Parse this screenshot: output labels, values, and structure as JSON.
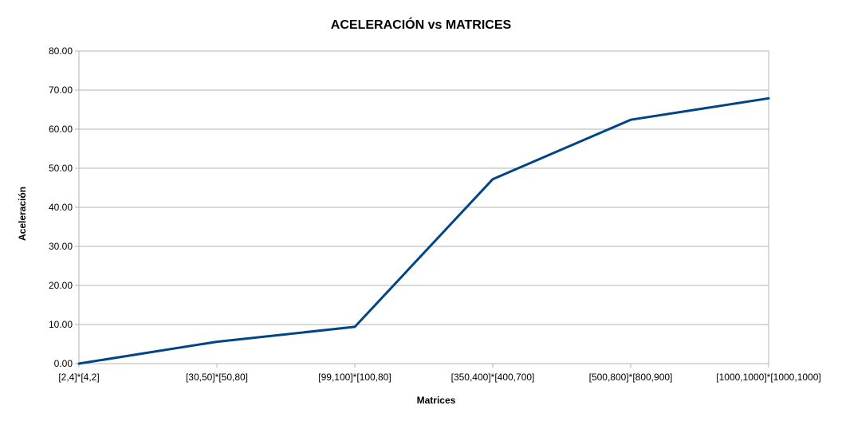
{
  "chart_data": {
    "type": "line",
    "title": "ACELERACIÓN vs MATRICES",
    "xlabel": "Matrices",
    "ylabel": "Aceleración",
    "categories": [
      "[2,4]*[4,2]",
      "[30,50]*[50,80]",
      "[99,100]*[100,80]",
      "[350,400]*[400,700]",
      "[500,800]*[800,900]",
      "[1000,1000]*[1000,1000]"
    ],
    "series": [
      {
        "values": [
          0.0,
          5.6,
          9.4,
          47.2,
          62.4,
          67.9
        ],
        "color": "#004586"
      }
    ],
    "ylim": [
      0,
      80
    ],
    "yticks": [
      "0.00",
      "10.00",
      "20.00",
      "30.00",
      "40.00",
      "50.00",
      "60.00",
      "70.00",
      "80.00"
    ],
    "grid": true,
    "legend": "none"
  }
}
